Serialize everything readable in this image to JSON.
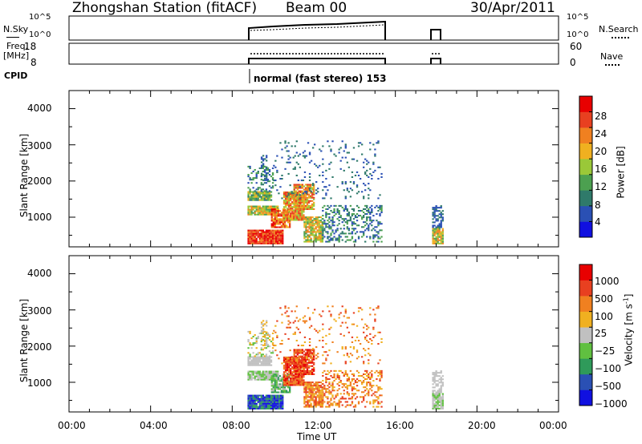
{
  "header": {
    "station": "Zhongshan Station (fitACF)",
    "beam": "Beam 00",
    "date": "30/Apr/2011"
  },
  "nsky_panel": {
    "left_label": "N.Sky",
    "left_ticks": [
      "10^5",
      "10^0"
    ],
    "right_ticks": [
      "10^5",
      "10^0"
    ],
    "right_label": "N.Search"
  },
  "freq_panel": {
    "left_label_1": "Freq.",
    "left_label_2": "[MHz]",
    "left_ticks": [
      "18",
      "8"
    ],
    "right_ticks": [
      "60",
      "0"
    ],
    "right_label": "Nave"
  },
  "cpid": {
    "label": "CPID",
    "text": "normal (fast stereo) 153"
  },
  "colors": {
    "power": [
      "#1010e0",
      "#2a50b4",
      "#2f7a6a",
      "#4ca050",
      "#9ac838",
      "#f0b020",
      "#f08020",
      "#e84020",
      "#e80000"
    ],
    "velocity": [
      "#e80000",
      "#e84020",
      "#f08020",
      "#f0b020",
      "#c0c0c0",
      "#60c040",
      "#2f9a5a",
      "#2a50b4",
      "#1010e0"
    ]
  },
  "chart_data": [
    {
      "type": "heatmap",
      "panel": "power",
      "ylabel": "Slant Range [km]",
      "yticks": [
        "1000",
        "2000",
        "3000",
        "4000"
      ],
      "ylim": [
        180,
        4500
      ],
      "xlim": [
        0,
        24
      ],
      "colorbar_label": "Power [dB]",
      "colorbar_ticks": [
        "4",
        "8",
        "12",
        "16",
        "20",
        "24",
        "28"
      ],
      "colorbar_range": [
        0,
        32
      ],
      "data_windows": [
        [
          8.75,
          15.4
        ],
        [
          17.8,
          18.3
        ]
      ]
    },
    {
      "type": "heatmap",
      "panel": "velocity",
      "ylabel": "Slant Range [km]",
      "yticks": [
        "1000",
        "2000",
        "3000",
        "4000"
      ],
      "ylim": [
        180,
        4500
      ],
      "xlim": [
        0,
        24
      ],
      "xticks": [
        "00:00",
        "04:00",
        "08:00",
        "12:00",
        "16:00",
        "20:00",
        "00:00"
      ],
      "xlabel": "Time UT",
      "colorbar_label": "Velocity [m s",
      "colorbar_label_sup": "-1",
      "colorbar_label_end": "]",
      "colorbar_ticks": [
        "1000",
        "500",
        "100",
        "25",
        "−25",
        "−100",
        "−500",
        "−1000"
      ],
      "data_windows": [
        [
          8.75,
          15.4
        ],
        [
          17.8,
          18.3
        ]
      ]
    }
  ]
}
